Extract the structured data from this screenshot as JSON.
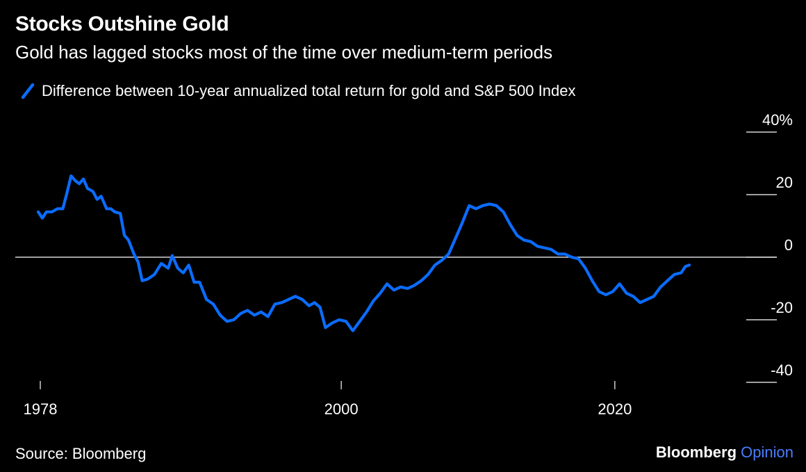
{
  "title": "Stocks Outshine Gold",
  "subtitle": "Gold has lagged stocks most of the time over medium-term periods",
  "source": "Source: Bloomberg",
  "brand": {
    "name": "Bloomberg",
    "suffix": "Opinion",
    "suffix_color": "#4a7dff"
  },
  "colors": {
    "background": "#000000",
    "series": "#0a6cff",
    "text": "#ffffff",
    "zero_line": "#ffffff"
  },
  "chart_data": {
    "type": "line",
    "title": "Stocks Outshine Gold",
    "subtitle": "Gold has lagged stocks most of the time over medium-term periods",
    "xlabel": "",
    "ylabel": "",
    "xlim": [
      1978,
      2026
    ],
    "ylim": [
      -40,
      40
    ],
    "x_ticks": [
      1978,
      2000,
      2020
    ],
    "y_ticks": [
      40,
      20,
      0,
      -20,
      -40
    ],
    "y_tick_labels": [
      "40%",
      "20",
      "0",
      "-20",
      "-40"
    ],
    "y_axis_side": "right",
    "grid": false,
    "zero_line": true,
    "legend": "top-left",
    "series": [
      {
        "name": "Difference between 10-year annualized total return for gold and S&P 500 Index",
        "color": "#0a6cff",
        "x": [
          1978.0,
          1978.3,
          1978.6,
          1979.0,
          1979.4,
          1979.8,
          1980.1,
          1980.4,
          1980.7,
          1981.0,
          1981.3,
          1981.6,
          1982.0,
          1982.3,
          1982.6,
          1983.0,
          1983.3,
          1983.6,
          1984.0,
          1984.3,
          1984.6,
          1985.0,
          1985.3,
          1985.6,
          1986.0,
          1986.5,
          1987.0,
          1987.5,
          1987.8,
          1988.2,
          1988.6,
          1989.0,
          1989.4,
          1989.8,
          1990.3,
          1990.8,
          1991.3,
          1991.8,
          1992.3,
          1992.8,
          1993.3,
          1993.8,
          1994.3,
          1994.8,
          1995.3,
          1995.8,
          1996.3,
          1996.8,
          1997.3,
          1997.8,
          1998.2,
          1998.6,
          1999.0,
          1999.5,
          2000.0,
          2000.5,
          2001.0,
          2001.5,
          2002.0,
          2002.5,
          2003.0,
          2003.5,
          2004.0,
          2004.5,
          2005.0,
          2005.5,
          2006.0,
          2006.5,
          2007.0,
          2007.5,
          2008.0,
          2008.5,
          2009.0,
          2009.5,
          2010.0,
          2010.5,
          2011.0,
          2011.5,
          2012.0,
          2012.5,
          2013.0,
          2013.5,
          2014.0,
          2014.5,
          2015.0,
          2015.5,
          2016.0,
          2016.5,
          2017.0,
          2017.5,
          2018.0,
          2018.5,
          2019.0,
          2019.5,
          2020.0,
          2020.5,
          2021.0,
          2021.5,
          2022.0,
          2022.5,
          2023.0,
          2023.5,
          2024.0,
          2024.5,
          2025.0,
          2025.3,
          2025.6
        ],
        "values": [
          14.5,
          12.5,
          14.5,
          14.5,
          15.5,
          15.5,
          20.5,
          26.0,
          24.5,
          23.5,
          25.0,
          22.0,
          21.0,
          18.5,
          19.5,
          15.5,
          15.5,
          14.5,
          14.0,
          7.0,
          5.5,
          1.0,
          -1.5,
          -7.5,
          -7.0,
          -5.5,
          -2.0,
          -3.5,
          0.5,
          -3.5,
          -5.0,
          -2.5,
          -8.0,
          -8.0,
          -13.5,
          -15.0,
          -18.5,
          -20.5,
          -20.0,
          -18.0,
          -17.0,
          -18.5,
          -17.5,
          -19.0,
          -15.0,
          -14.5,
          -13.5,
          -12.5,
          -13.5,
          -15.5,
          -14.5,
          -16.0,
          -22.5,
          -21.0,
          -20.0,
          -20.5,
          -23.5,
          -20.5,
          -17.5,
          -14.0,
          -11.5,
          -8.5,
          -10.5,
          -9.5,
          -10.0,
          -9.0,
          -7.5,
          -5.5,
          -2.5,
          -1.0,
          1.0,
          6.0,
          11.0,
          16.5,
          15.5,
          16.5,
          17.0,
          16.5,
          14.5,
          10.5,
          7.0,
          5.5,
          5.0,
          3.5,
          3.0,
          2.5,
          1.0,
          1.0,
          0.0,
          -0.5,
          -3.5,
          -7.5,
          -11.0,
          -12.0,
          -11.0,
          -8.5,
          -11.5,
          -12.5,
          -14.5,
          -13.5,
          -12.5,
          -9.5,
          -7.5,
          -5.5,
          -5.0,
          -3.0,
          -2.5
        ]
      }
    ]
  }
}
